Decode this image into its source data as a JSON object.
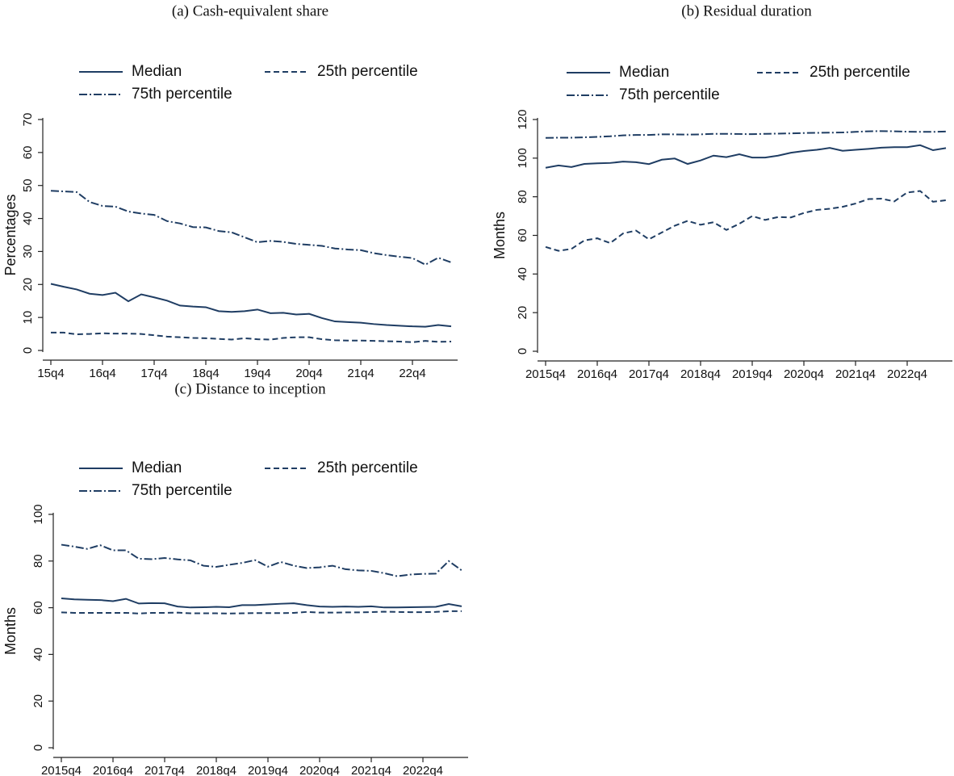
{
  "chart_data": [
    {
      "type": "line",
      "title": "(a) Cash-equivalent share",
      "y_label": "Percentages",
      "categories": [
        "15q4",
        null,
        null,
        null,
        "16q4",
        null,
        null,
        null,
        "17q4",
        null,
        null,
        null,
        "18q4",
        null,
        null,
        null,
        "19q4",
        null,
        null,
        null,
        "20q4",
        null,
        null,
        null,
        "21q4",
        null,
        null,
        null,
        "22q4",
        null,
        null,
        null
      ],
      "ylim": [
        0,
        70
      ],
      "yticks": [
        0,
        10,
        20,
        30,
        40,
        50,
        60,
        70
      ],
      "series": [
        {
          "name": "Median",
          "color": "#1f3d63",
          "dash": "solid",
          "values": [
            20.2,
            19.3,
            18.5,
            17.2,
            16.8,
            17.5,
            14.9,
            17,
            16.1,
            15.1,
            13.6,
            13.3,
            13.1,
            11.9,
            11.7,
            11.9,
            12.4,
            11.3,
            11.4,
            10.9,
            11.1,
            9.8,
            8.8,
            8.6,
            8.4,
            8,
            7.7,
            7.5,
            7.3,
            7.2,
            7.7,
            7.3
          ]
        },
        {
          "name": "25th percentile",
          "color": "#1f3d63",
          "dash": "dash",
          "values": [
            5.4,
            5.4,
            4.9,
            5,
            5.2,
            5.1,
            5.1,
            5,
            4.6,
            4.2,
            4,
            3.8,
            3.7,
            3.5,
            3.3,
            3.7,
            3.4,
            3.3,
            3.8,
            4,
            4,
            3.4,
            3.1,
            3,
            3,
            2.9,
            2.8,
            2.7,
            2.5,
            2.9,
            2.6,
            2.7
          ]
        },
        {
          "name": "75th percentile",
          "color": "#1f3d63",
          "dash": "dashdot",
          "values": [
            48.4,
            48.2,
            48,
            45,
            43.8,
            43.6,
            42.1,
            41.5,
            41.1,
            39.2,
            38.5,
            37.4,
            37.3,
            36.2,
            35.8,
            34.3,
            32.8,
            33.2,
            32.9,
            32.3,
            32,
            31.7,
            30.9,
            30.6,
            30.4,
            29.5,
            28.9,
            28.4,
            28,
            26,
            28.1,
            26.7
          ]
        }
      ]
    },
    {
      "type": "line",
      "title": "(b) Residual duration",
      "y_label": "Months",
      "categories": [
        "2015q4",
        null,
        null,
        null,
        "2016q4",
        null,
        null,
        null,
        "2017q4",
        null,
        null,
        null,
        "2018q4",
        null,
        null,
        null,
        "2019q4",
        null,
        null,
        null,
        "2020q4",
        null,
        null,
        null,
        "2021q4",
        null,
        null,
        null,
        "2022q4",
        null,
        null,
        null
      ],
      "ylim": [
        0,
        120
      ],
      "yticks": [
        0,
        20,
        40,
        60,
        80,
        100,
        120
      ],
      "series": [
        {
          "name": "Median",
          "color": "#1f3d63",
          "dash": "solid",
          "values": [
            95,
            96.2,
            95.4,
            97,
            97.3,
            97.5,
            98.2,
            97.9,
            96.9,
            99.2,
            99.8,
            97,
            98.8,
            101.3,
            100.5,
            102,
            100.3,
            100.3,
            101.3,
            102.8,
            103.7,
            104.3,
            105.3,
            103.8,
            104.3,
            104.8,
            105.4,
            105.7,
            105.7,
            106.7,
            104.1,
            105.2
          ]
        },
        {
          "name": "25th percentile",
          "color": "#1f3d63",
          "dash": "dash",
          "values": [
            54,
            52,
            53,
            57.4,
            58.5,
            56,
            61,
            62.5,
            58,
            61.5,
            65,
            67.5,
            65.5,
            66.8,
            62.8,
            66,
            70,
            68,
            69.5,
            69.3,
            71.6,
            73.2,
            73.8,
            74.8,
            76.5,
            78.8,
            79,
            77.6,
            82.2,
            83,
            77.4,
            78.2
          ]
        },
        {
          "name": "75th percentile",
          "color": "#1f3d63",
          "dash": "dashdot",
          "values": [
            110.5,
            110.6,
            110.6,
            110.8,
            111,
            111.3,
            111.8,
            112,
            112,
            112.3,
            112.3,
            112.2,
            112.3,
            112.6,
            112.6,
            112.5,
            112.4,
            112.6,
            112.7,
            112.8,
            113,
            113.1,
            113.2,
            113.3,
            113.6,
            113.9,
            114,
            113.9,
            113.7,
            113.6,
            113.6,
            113.8
          ]
        }
      ]
    },
    {
      "type": "line",
      "title": "(c) Distance to inception",
      "y_label": "Months",
      "categories": [
        "2015q4",
        null,
        null,
        null,
        "2016q4",
        null,
        null,
        null,
        "2017q4",
        null,
        null,
        null,
        "2018q4",
        null,
        null,
        null,
        "2019q4",
        null,
        null,
        null,
        "2020q4",
        null,
        null,
        null,
        "2021q4",
        null,
        null,
        null,
        "2022q4",
        null,
        null,
        null
      ],
      "ylim": [
        0,
        100
      ],
      "yticks": [
        0,
        20,
        40,
        60,
        80,
        100
      ],
      "series": [
        {
          "name": "Median",
          "color": "#1f3d63",
          "dash": "solid",
          "values": [
            64,
            63.6,
            63.4,
            63.3,
            62.8,
            63.8,
            61.8,
            62,
            61.9,
            60.5,
            60.1,
            60.2,
            60.4,
            60.2,
            61.1,
            61.1,
            61.4,
            61.7,
            61.9,
            61.1,
            60.5,
            60.4,
            60.5,
            60.4,
            60.6,
            60.1,
            60.1,
            60.2,
            60.3,
            60.4,
            61.6,
            60.6
          ]
        },
        {
          "name": "25th percentile",
          "color": "#1f3d63",
          "dash": "dash",
          "values": [
            58,
            57.8,
            57.8,
            57.8,
            57.8,
            57.8,
            57.5,
            57.8,
            57.8,
            57.9,
            57.6,
            57.6,
            57.6,
            57.5,
            57.6,
            57.7,
            57.7,
            57.7,
            57.8,
            58.2,
            57.9,
            57.9,
            58,
            58,
            58.1,
            58.3,
            58.2,
            58.1,
            58.1,
            58.2,
            58.5,
            58.5
          ]
        },
        {
          "name": "75th percentile",
          "color": "#1f3d63",
          "dash": "dashdot",
          "values": [
            87,
            86.2,
            85.2,
            86.8,
            84.6,
            84.6,
            81,
            80.8,
            81.3,
            80.7,
            80.3,
            78,
            77.5,
            78.4,
            79.2,
            80.4,
            77.6,
            79.6,
            78,
            77,
            77.3,
            78,
            76.5,
            76,
            75.8,
            74.8,
            73.5,
            74.2,
            74.5,
            74.6,
            80,
            76
          ]
        }
      ]
    }
  ]
}
